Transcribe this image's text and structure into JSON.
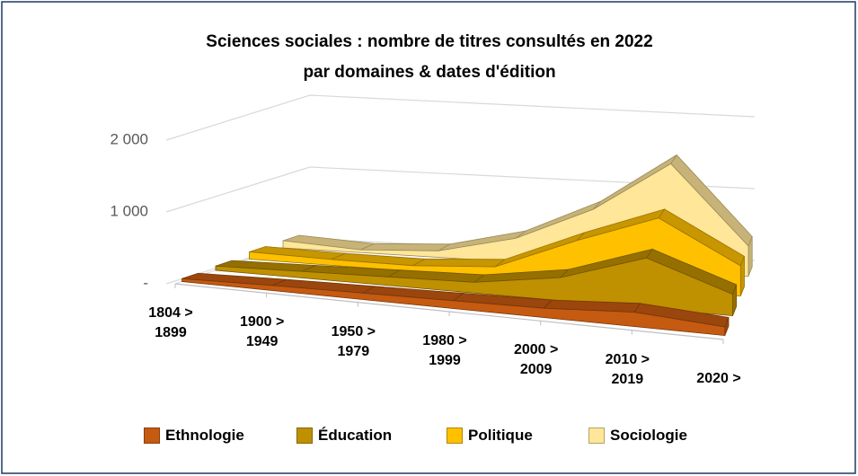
{
  "chart_data": {
    "type": "area3d",
    "title": "Sciences sociales : nombre de titres consultés en 2022",
    "subtitle": "par domaines & dates d'édition",
    "categories": [
      "1804 > 1899",
      "1900 > 1949",
      "1950 > 1979",
      "1980 > 1999",
      "2000 > 2009",
      "2010 > 2019",
      "2020 >"
    ],
    "series": [
      {
        "name": "Ethnologie",
        "color": "#c55a11",
        "values": [
          40,
          70,
          90,
          110,
          130,
          200,
          120
        ]
      },
      {
        "name": "Éducation",
        "color": "#bf9000",
        "values": [
          60,
          90,
          120,
          150,
          320,
          700,
          300
        ]
      },
      {
        "name": "Politique",
        "color": "#ffc000",
        "values": [
          100,
          80,
          80,
          150,
          600,
          1000,
          420
        ]
      },
      {
        "name": "Sociologie",
        "color": "#ffe699",
        "values": [
          100,
          40,
          90,
          330,
          800,
          1500,
          420
        ]
      }
    ],
    "ylim": [
      0,
      2000
    ],
    "yticks": [
      {
        "value": 0,
        "label": "-"
      },
      {
        "value": 1000,
        "label": "1 000"
      },
      {
        "value": 2000,
        "label": "2 000"
      }
    ],
    "grid": true,
    "legend": "bottom"
  }
}
